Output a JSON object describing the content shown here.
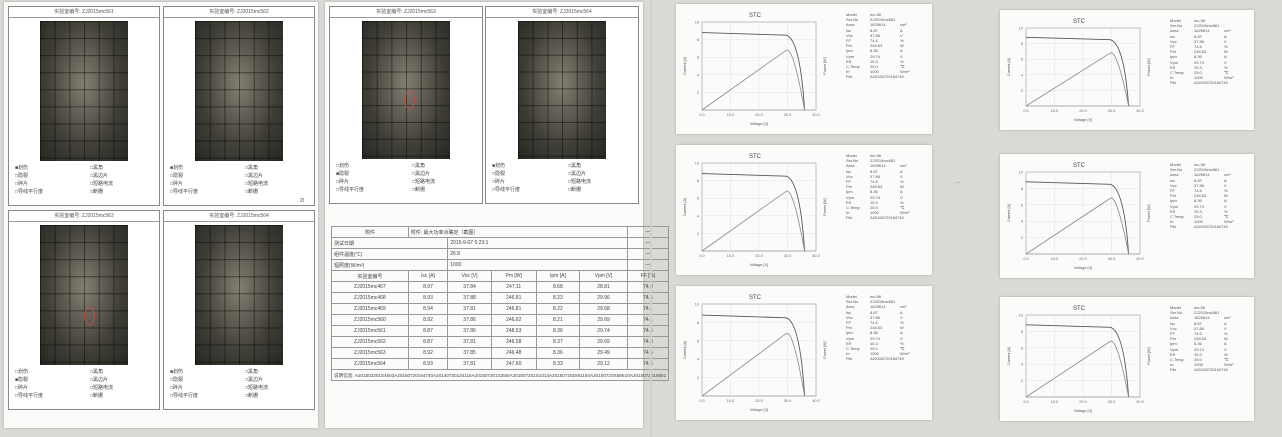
{
  "el_report": {
    "cells": [
      {
        "title_label": "实验室编号:",
        "title_id": "ZJ2015mc561",
        "selected": "划伤"
      },
      {
        "title_label": "实验室编号:",
        "title_id": "ZJ2015mc562",
        "selected": "划伤"
      },
      {
        "title_label": "实验室编号:",
        "title_id": "ZJ2015mc563",
        "selected": "隐裂"
      },
      {
        "title_label": "实验室编号:",
        "title_id": "ZJ2015mc564",
        "selected": "划伤"
      },
      {
        "title_label": "实验室编号:",
        "title_id": "ZJ2015mc563",
        "selected": "隐裂"
      },
      {
        "title_label": "实验室编号:",
        "title_id": "ZJ2015mc564",
        "selected": "划伤"
      }
    ],
    "checkboxes": [
      "划伤",
      "黑角",
      "隐裂",
      "黑边片",
      "碎片",
      "短路电流",
      "导线平行度",
      "断栅"
    ],
    "corner_note": "2/"
  },
  "summary_table": {
    "title": "附件: 最大功率点确定（截图）",
    "header_right": "—",
    "meta_rows": [
      {
        "label": "测试日期",
        "value": "2015-9-07 5:23:1"
      },
      {
        "label": "组件温度(℃)",
        "value": "26.8"
      },
      {
        "label": "辐照度(W/m²)",
        "value": "1000"
      }
    ],
    "columns": [
      "实验室编号",
      "Isc [A]",
      "Voc [V]",
      "Pm [W]",
      "Ipm [A]",
      "Vpm [V]",
      "FF [%]"
    ],
    "rows": [
      [
        "ZJ2015mc467",
        "8.97",
        "37.84",
        "247.11",
        "8.68",
        "28.81",
        "74.3"
      ],
      [
        "ZJ2015mc468",
        "8.93",
        "37.88",
        "246.81",
        "8.23",
        "29.96",
        "74.5"
      ],
      [
        "ZJ2015mc469",
        "8.94",
        "37.81",
        "246.81",
        "8.22",
        "29.68",
        "74.1"
      ],
      [
        "ZJ2015mc560",
        "8.92",
        "37.86",
        "246.62",
        "8.21",
        "29.69",
        "74.1"
      ],
      [
        "ZJ2015mc561",
        "8.87",
        "37.86",
        "248.53",
        "8.36",
        "29.74",
        "74.6"
      ],
      [
        "ZJ2015mc562",
        "8.87",
        "37.81",
        "246.58",
        "8.37",
        "29.69",
        "74.3"
      ],
      [
        "ZJ2015mc563",
        "8.92",
        "37.85",
        "246.48",
        "8.36",
        "29.49",
        "74.5"
      ],
      [
        "ZJ2015mc564",
        "8.93",
        "37.81",
        "247.60",
        "8.33",
        "29.12",
        "74.6"
      ]
    ],
    "remark": "说明信息: A201503201S4603A20150720164740A20140720134116A201507201S355IA201507201S1013A201507201661160A20150720S58E10A2015072015601"
  },
  "iv_cards": [
    {
      "title": "STC",
      "xlabel": "Voltage [V]",
      "ylabel": "Current [A]",
      "y2label": "Power [W]",
      "x_ticks": [
        "0.0",
        "10.0",
        "20.0",
        "30.0",
        "40.0"
      ],
      "y_ticks": [
        "10",
        "8",
        "6",
        "4",
        "2"
      ]
    },
    {
      "title": "STC",
      "xlabel": "Voltage [V]",
      "ylabel": "Current [A]",
      "y2label": "Power [W]",
      "x_ticks": [
        "0.0",
        "10.0",
        "20.0",
        "30.0",
        "40.0"
      ],
      "y_ticks": [
        "10",
        "8",
        "6",
        "4",
        "2"
      ]
    },
    {
      "title": "STC",
      "xlabel": "Voltage [V]",
      "ylabel": "Current [A]",
      "y2label": "Power [W]",
      "x_ticks": [
        "0.0",
        "10.0",
        "20.0",
        "30.0",
        "40.0"
      ],
      "y_ticks": [
        "10",
        "8",
        "6",
        "4",
        "2"
      ]
    },
    {
      "title": "STC",
      "xlabel": "Voltage [V]",
      "ylabel": "Current [A]",
      "y2label": "Power [W]",
      "x_ticks": [
        "0.0",
        "10.0",
        "20.0",
        "30.0",
        "40.0"
      ],
      "y_ticks": [
        "10",
        "8",
        "6",
        "4",
        "2"
      ]
    },
    {
      "title": "STC",
      "xlabel": "Voltage [V]",
      "ylabel": "Current [A]",
      "y2label": "Power [W]",
      "x_ticks": [
        "0.0",
        "10.0",
        "20.0",
        "30.0",
        "40.0"
      ],
      "y_ticks": [
        "10",
        "8",
        "6",
        "4",
        "2"
      ]
    },
    {
      "title": "STC",
      "xlabel": "Voltage [V]",
      "ylabel": "Current [A]",
      "y2label": "Power [W]",
      "x_ticks": [
        "0.0",
        "10.0",
        "20.0",
        "30.0",
        "40.0"
      ],
      "y_ticks": [
        "10",
        "8",
        "6",
        "4",
        "2"
      ]
    }
  ],
  "spec_rows": [
    [
      "Model",
      "mc-56"
    ],
    [
      "Ser.No",
      "ZJ2015mc561"
    ],
    [
      "Area",
      "1629614",
      "cm²"
    ],
    [
      "Isc",
      "8.87",
      "A"
    ],
    [
      "Voc",
      "37.86",
      "V"
    ],
    [
      "FF",
      "74.6",
      "%"
    ],
    [
      "Pm",
      "248.53",
      "W"
    ],
    [
      "Ipm",
      "8.36",
      "A"
    ],
    [
      "Vpm",
      "29.74",
      "V"
    ],
    [
      "Eff",
      "15.3",
      "%"
    ],
    [
      "C.Temp",
      "25.0",
      "℃"
    ],
    [
      "Irr",
      "1000",
      "W/m²"
    ],
    [
      "File",
      "A20150720164740"
    ]
  ],
  "middle_mark": "—",
  "colors": {
    "paper": "#fbfbf9",
    "background": "#d9d9d6",
    "defect_circle": "#c34a4a",
    "curve": "#555555"
  }
}
